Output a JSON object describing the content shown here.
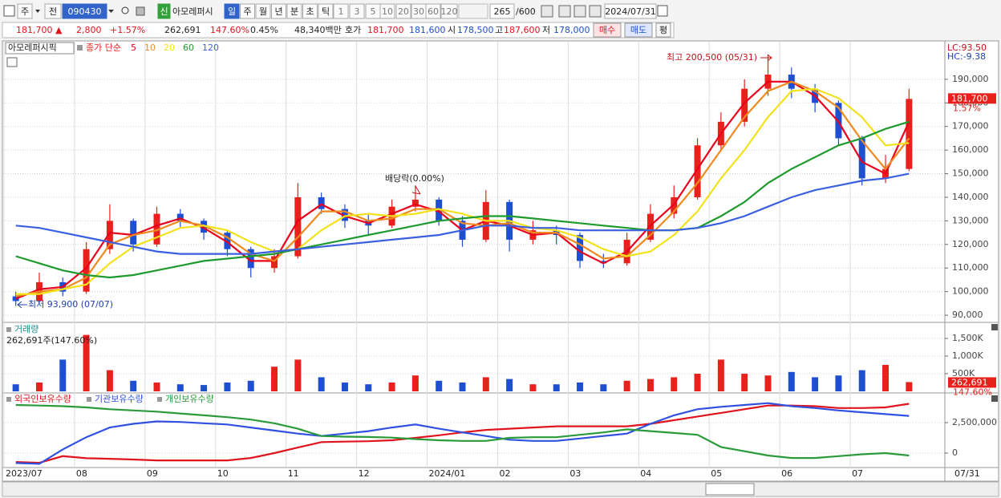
{
  "toolbar": {
    "period_type": "주",
    "prefix": "전",
    "code": "090430",
    "badge": "신",
    "name": "아모레퍼시",
    "intervals": [
      "일",
      "주",
      "월",
      "년",
      "분",
      "초",
      "틱"
    ],
    "steps": [
      1,
      3,
      5,
      10,
      20,
      30,
      60,
      120
    ],
    "count": 265,
    "max": "/600",
    "date": "2024/07/31"
  },
  "quote_bar": {
    "price": "181,700 ▲",
    "change": "2,800",
    "change_pct": "+1.57%",
    "volume": "262,691",
    "volume_ratio": "147.60%",
    "turnover": "0.45%",
    "amount": "48,340백만",
    "ask_label": "호가",
    "ask": "181,700",
    "bid": "181,600",
    "open_label": "시",
    "open": "178,500",
    "high_label": "고",
    "high": "187,600",
    "low_label": "저",
    "low": "178,000",
    "buy": "매수",
    "sell": "매도",
    "avg": "평"
  },
  "chart_data": [
    {
      "type": "candlestick",
      "title": "아모레퍼시픽",
      "legend_label": "종가 단순",
      "categories": [
        "2023/07",
        null,
        null,
        "08",
        null,
        null,
        "09",
        null,
        null,
        "10",
        null,
        null,
        "11",
        null,
        null,
        "12",
        null,
        null,
        "2024/01",
        null,
        null,
        "02",
        null,
        null,
        "03",
        null,
        null,
        "04",
        null,
        null,
        "05",
        null,
        null,
        "06",
        null,
        null,
        "07",
        null,
        null
      ],
      "end_label": "07/31",
      "open": [
        98000,
        96000,
        104000,
        100000,
        118000,
        130000,
        120000,
        133000,
        130000,
        125000,
        118000,
        110000,
        115000,
        140000,
        135000,
        130000,
        128000,
        136000,
        139000,
        130000,
        122000,
        138000,
        122000,
        126000,
        124000,
        113000,
        112000,
        122000,
        133000,
        140000,
        162000,
        172000,
        186000,
        192000,
        186000,
        180000,
        165000,
        148000,
        152000
      ],
      "high": [
        100000,
        108000,
        106000,
        121000,
        137000,
        131000,
        136000,
        135000,
        131000,
        126000,
        119000,
        118000,
        146000,
        142000,
        137000,
        133000,
        139000,
        145000,
        140000,
        132000,
        143000,
        139000,
        130000,
        128000,
        125000,
        116000,
        125000,
        137000,
        145000,
        165000,
        176000,
        190000,
        200500,
        195000,
        188000,
        181000,
        166000,
        158000,
        186000
      ],
      "low": [
        93900,
        95000,
        98000,
        99000,
        116000,
        117000,
        119000,
        127000,
        122000,
        115000,
        106000,
        108000,
        114000,
        133000,
        127000,
        124000,
        127000,
        134000,
        128000,
        119000,
        121000,
        117000,
        120000,
        120000,
        110000,
        110000,
        111000,
        121000,
        131000,
        139000,
        160000,
        170000,
        183000,
        182000,
        176000,
        162000,
        145000,
        146000,
        151000
      ],
      "close": [
        96000,
        104000,
        100000,
        118000,
        130000,
        120000,
        133000,
        130000,
        125000,
        118000,
        110000,
        115000,
        140000,
        135000,
        130000,
        128000,
        136000,
        139000,
        130000,
        122000,
        138000,
        122000,
        126000,
        124000,
        113000,
        112000,
        122000,
        133000,
        140000,
        162000,
        172000,
        186000,
        192000,
        186000,
        180000,
        165000,
        148000,
        152000,
        181700
      ],
      "up_color": "#e8211c",
      "down_color": "#1f4fd1",
      "series": [
        {
          "name": "5",
          "color": "#e8001c",
          "values": [
            97000,
            101000,
            102000,
            110000,
            125000,
            124000,
            128000,
            131000,
            127000,
            121000,
            113000,
            113000,
            130000,
            137000,
            132000,
            129000,
            133000,
            137000,
            134000,
            126000,
            130000,
            128000,
            124000,
            125000,
            117000,
            112000,
            117000,
            128000,
            137000,
            152000,
            167000,
            180000,
            189000,
            189000,
            183000,
            172000,
            155000,
            150000,
            172000
          ]
        },
        {
          "name": "10",
          "color": "#ef8a1f",
          "values": [
            98000,
            100000,
            101000,
            106000,
            120000,
            124000,
            126000,
            130000,
            128000,
            123000,
            116000,
            113000,
            123000,
            134000,
            134000,
            130000,
            131000,
            135000,
            135000,
            129000,
            128000,
            129000,
            125000,
            125000,
            120000,
            114000,
            115000,
            124000,
            134000,
            146000,
            160000,
            174000,
            185000,
            189000,
            185000,
            178000,
            164000,
            152000,
            165000
          ]
        },
        {
          "name": "20",
          "color": "#f2e21a",
          "values": [
            99000,
            99000,
            101000,
            103000,
            112000,
            119000,
            123000,
            127000,
            128000,
            126000,
            121000,
            117000,
            118000,
            126000,
            132000,
            133000,
            132000,
            133000,
            135000,
            133000,
            130000,
            130000,
            127000,
            126000,
            123000,
            118000,
            115000,
            117000,
            124000,
            134000,
            148000,
            160000,
            174000,
            185000,
            186000,
            182000,
            174000,
            162000,
            163000
          ]
        },
        {
          "name": "60",
          "color": "#1f9a2e",
          "values": [
            115000,
            112000,
            109000,
            107000,
            106000,
            107000,
            109000,
            111000,
            113000,
            114000,
            115000,
            116000,
            118000,
            120000,
            122000,
            124000,
            126000,
            128000,
            130000,
            131000,
            132000,
            132000,
            131000,
            130000,
            129000,
            128000,
            127000,
            126000,
            126000,
            127000,
            132000,
            138000,
            146000,
            152000,
            157000,
            162000,
            165000,
            169000,
            172000
          ]
        },
        {
          "name": "120",
          "color": "#3a5fe0",
          "values": [
            128000,
            127000,
            125000,
            123000,
            121000,
            119000,
            117000,
            116000,
            116000,
            116000,
            116000,
            117000,
            118000,
            119000,
            120000,
            121000,
            122000,
            123000,
            124000,
            126000,
            128000,
            128000,
            127000,
            127000,
            126000,
            126000,
            126000,
            126000,
            126000,
            127000,
            129000,
            132000,
            136000,
            140000,
            143000,
            145000,
            147000,
            148000,
            150000
          ]
        }
      ],
      "ylim": [
        87300,
        205600
      ],
      "yticks": [
        {
          "value": 90000,
          "label": "90,000"
        },
        {
          "value": 100000,
          "label": "100,000"
        },
        {
          "value": 110000,
          "label": "110,000"
        },
        {
          "value": 120000,
          "label": "120,000"
        },
        {
          "value": 130000,
          "label": "130,000"
        },
        {
          "value": 140000,
          "label": "140,000"
        },
        {
          "value": 150000,
          "label": "150,000"
        },
        {
          "value": 160000,
          "label": "160,000"
        },
        {
          "value": 170000,
          "label": "170,000"
        },
        {
          "value": 180000,
          "label": "180,000"
        },
        {
          "value": 190000,
          "label": "190,000"
        }
      ],
      "grid": true,
      "annotations": {
        "high": "최고 200,500 (05/31)",
        "low": "최저 93,900 (07/07)",
        "dividend": "배당락(0.00%)"
      },
      "lc": "LC:93.50",
      "hc": "HC:-9.38",
      "last_label": "181,700",
      "last_change": "1.57%"
    },
    {
      "type": "bar",
      "title": "거래량",
      "subtitle": "262,691주(147.60%)",
      "values": [
        200000,
        250000,
        900000,
        1600000,
        600000,
        300000,
        250000,
        200000,
        180000,
        250000,
        300000,
        700000,
        900000,
        400000,
        250000,
        200000,
        250000,
        450000,
        300000,
        250000,
        400000,
        350000,
        200000,
        200000,
        250000,
        200000,
        300000,
        350000,
        400000,
        500000,
        900000,
        500000,
        450000,
        550000,
        400000,
        450000,
        600000,
        750000,
        262691
      ],
      "ylim": [
        0,
        1910000
      ],
      "yticks": [
        {
          "value": 500000,
          "label": "500K"
        },
        {
          "value": 1000000,
          "label": "1,000K"
        },
        {
          "value": 1500000,
          "label": "1,500K"
        }
      ],
      "grid": true,
      "last_label": "262,691",
      "last_change": "147.60%"
    },
    {
      "type": "line",
      "series": [
        {
          "name": "외국인보유수량",
          "color": "#e0141e",
          "values": [
            -730000,
            -800000,
            -250000,
            -420000,
            -470000,
            -530000,
            -600000,
            -600000,
            -600000,
            -600000,
            -400000,
            0,
            450000,
            900000,
            940000,
            970000,
            1050000,
            1250000,
            1460000,
            1700000,
            1900000,
            2000000,
            2100000,
            2200000,
            2200000,
            2200000,
            2200000,
            2400000,
            2700000,
            3000000,
            3300000,
            3600000,
            3900000,
            3900000,
            3850000,
            3700000,
            3700000,
            3750000,
            4050000
          ]
        },
        {
          "name": "기관보유수량",
          "color": "#3050e0",
          "values": [
            -820000,
            -880000,
            300000,
            1300000,
            2100000,
            2400000,
            2600000,
            2550000,
            2450000,
            2350000,
            2100000,
            1850000,
            1600000,
            1400000,
            1600000,
            1800000,
            2100000,
            2350000,
            2000000,
            1700000,
            1400000,
            1100000,
            1000000,
            1000000,
            1200000,
            1400000,
            1600000,
            2400000,
            3100000,
            3600000,
            3800000,
            3950000,
            4100000,
            3850000,
            3700000,
            3500000,
            3350000,
            3200000,
            3050000
          ]
        },
        {
          "name": "개인보유수량",
          "color": "#2a9a3a",
          "values": [
            3950000,
            3900000,
            3850000,
            3750000,
            3600000,
            3500000,
            3400000,
            3250000,
            3100000,
            2950000,
            2750000,
            2450000,
            2000000,
            1400000,
            1350000,
            1320000,
            1270000,
            1150000,
            1050000,
            1000000,
            1000000,
            1250000,
            1300000,
            1300000,
            1500000,
            1700000,
            1950000,
            1800000,
            1650000,
            1500000,
            500000,
            150000,
            -200000,
            -400000,
            -400000,
            -250000,
            -100000,
            0,
            -200000
          ]
        }
      ],
      "ylim": [
        -1120000,
        4870000
      ],
      "yticks": [
        0,
        {
          "value": 2500000,
          "label": "2,500,000"
        }
      ],
      "grid": true
    }
  ]
}
